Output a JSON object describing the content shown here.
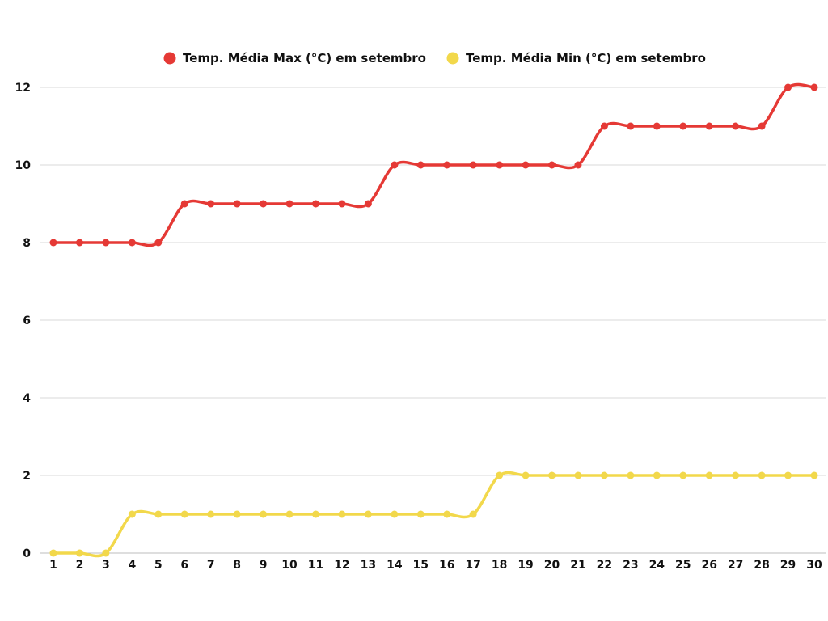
{
  "chart_data": {
    "type": "line",
    "title": "",
    "xlabel": "",
    "ylabel": "",
    "ylim": [
      0,
      12
    ],
    "yticks": [
      0,
      2,
      4,
      6,
      8,
      10,
      12
    ],
    "grid": true,
    "legend_position": "top",
    "smooth": true,
    "x": [
      1,
      2,
      3,
      4,
      5,
      6,
      7,
      8,
      9,
      10,
      11,
      12,
      13,
      14,
      15,
      16,
      17,
      18,
      19,
      20,
      21,
      22,
      23,
      24,
      25,
      26,
      27,
      28,
      29,
      30
    ],
    "series": [
      {
        "name": "Temp. Média Max (°C) em setembro",
        "color": "#e53935",
        "values": [
          8,
          8,
          8,
          8,
          8,
          9,
          9,
          9,
          9,
          9,
          9,
          9,
          9,
          10,
          10,
          10,
          10,
          10,
          10,
          10,
          10,
          11,
          11,
          11,
          11,
          11,
          11,
          11,
          12,
          12
        ]
      },
      {
        "name": "Temp. Média Min (°C) em setembro",
        "color": "#f2d84b",
        "values": [
          0,
          0,
          0,
          1,
          1,
          1,
          1,
          1,
          1,
          1,
          1,
          1,
          1,
          1,
          1,
          1,
          1,
          2,
          2,
          2,
          2,
          2,
          2,
          2,
          2,
          2,
          2,
          2,
          2,
          2
        ]
      }
    ]
  }
}
